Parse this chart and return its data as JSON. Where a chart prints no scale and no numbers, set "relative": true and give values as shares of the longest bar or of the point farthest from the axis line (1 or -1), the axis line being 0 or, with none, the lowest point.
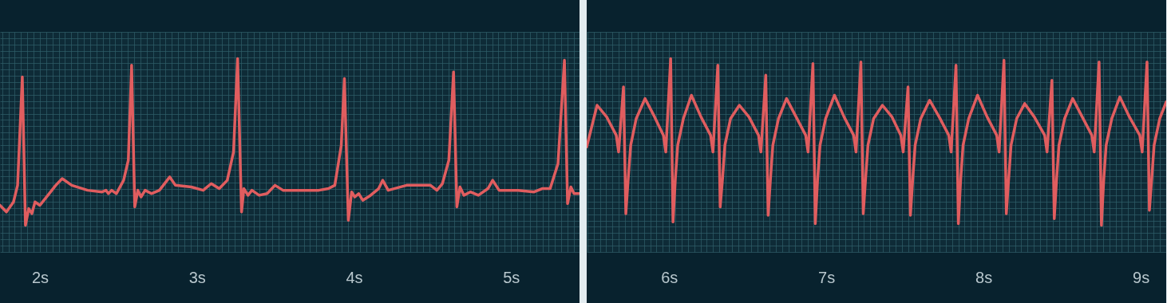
{
  "chart_data": [
    {
      "type": "line",
      "relative": true,
      "grid": true,
      "tick_labels": "x",
      "xlim": [
        1.746,
        5.436
      ],
      "xticks": [
        {
          "value": 2,
          "label": "2s"
        },
        {
          "value": 3,
          "label": "3s"
        },
        {
          "value": 4,
          "label": "4s"
        },
        {
          "value": 5,
          "label": "5s"
        }
      ],
      "x": [
        1.746,
        1.787,
        1.832,
        1.858,
        1.888,
        1.908,
        1.929,
        1.949,
        1.969,
        2.0,
        2.051,
        2.101,
        2.142,
        2.203,
        2.304,
        2.396,
        2.421,
        2.436,
        2.457,
        2.487,
        2.533,
        2.563,
        2.584,
        2.604,
        2.624,
        2.644,
        2.67,
        2.71,
        2.761,
        2.827,
        2.863,
        2.964,
        3.04,
        3.091,
        3.142,
        3.193,
        3.233,
        3.259,
        3.284,
        3.299,
        3.325,
        3.35,
        3.396,
        3.447,
        3.497,
        3.548,
        3.675,
        3.776,
        3.837,
        3.878,
        3.919,
        3.939,
        3.964,
        3.985,
        4.005,
        4.03,
        4.056,
        4.106,
        4.157,
        4.183,
        4.218,
        4.335,
        4.487,
        4.528,
        4.563,
        4.604,
        4.634,
        4.655,
        4.675,
        4.7,
        4.741,
        4.792,
        4.853,
        4.883,
        4.924,
        5.045,
        5.147,
        5.198,
        5.249,
        5.299,
        5.34,
        5.36,
        5.381,
        5.401,
        5.436
      ],
      "series": [
        {
          "color": "#e05d5f",
          "values": [
            0.12,
            0.08,
            0.14,
            0.24,
            0.89,
            0.0,
            0.1,
            0.07,
            0.14,
            0.12,
            0.18,
            0.24,
            0.28,
            0.24,
            0.21,
            0.2,
            0.21,
            0.19,
            0.21,
            0.19,
            0.27,
            0.39,
            0.96,
            0.11,
            0.21,
            0.17,
            0.21,
            0.19,
            0.21,
            0.29,
            0.24,
            0.23,
            0.21,
            0.25,
            0.22,
            0.27,
            0.44,
            1.0,
            0.08,
            0.22,
            0.18,
            0.21,
            0.18,
            0.19,
            0.24,
            0.21,
            0.21,
            0.21,
            0.22,
            0.24,
            0.48,
            0.88,
            0.03,
            0.2,
            0.17,
            0.19,
            0.15,
            0.18,
            0.22,
            0.27,
            0.21,
            0.24,
            0.24,
            0.21,
            0.25,
            0.39,
            0.92,
            0.11,
            0.23,
            0.18,
            0.2,
            0.18,
            0.22,
            0.27,
            0.21,
            0.21,
            0.2,
            0.22,
            0.22,
            0.37,
            0.99,
            0.13,
            0.23,
            0.19,
            0.19
          ]
        }
      ]
    },
    {
      "type": "line",
      "relative": true,
      "grid": true,
      "tick_labels": "x",
      "xlim": [
        5.476,
        9.162
      ],
      "xticks": [
        {
          "value": 6,
          "label": "6s"
        },
        {
          "value": 7,
          "label": "7s"
        },
        {
          "value": 8,
          "label": "8s"
        },
        {
          "value": 9,
          "label": "9s"
        }
      ],
      "x": [
        5.476,
        5.542,
        5.603,
        5.664,
        5.679,
        5.71,
        5.725,
        5.74,
        5.756,
        5.791,
        5.847,
        5.908,
        5.964,
        5.979,
        6.01,
        6.025,
        6.04,
        6.055,
        6.091,
        6.142,
        6.203,
        6.264,
        6.279,
        6.31,
        6.325,
        6.34,
        6.355,
        6.391,
        6.447,
        6.508,
        6.569,
        6.584,
        6.615,
        6.63,
        6.645,
        6.66,
        6.696,
        6.747,
        6.808,
        6.869,
        6.884,
        6.915,
        6.93,
        6.945,
        6.96,
        6.996,
        7.052,
        7.113,
        7.174,
        7.189,
        7.22,
        7.235,
        7.25,
        7.265,
        7.301,
        7.357,
        7.418,
        7.474,
        7.489,
        7.52,
        7.535,
        7.55,
        7.565,
        7.601,
        7.657,
        7.718,
        7.779,
        7.794,
        7.825,
        7.84,
        7.855,
        7.87,
        7.906,
        7.962,
        8.023,
        8.084,
        8.099,
        8.13,
        8.145,
        8.16,
        8.175,
        8.211,
        8.262,
        8.323,
        8.389,
        8.404,
        8.435,
        8.45,
        8.465,
        8.48,
        8.516,
        8.567,
        8.628,
        8.689,
        8.704,
        8.735,
        8.75,
        8.765,
        8.78,
        8.816,
        8.867,
        8.928,
        8.994,
        9.009,
        9.04,
        9.055,
        9.07,
        9.085,
        9.121,
        9.162
      ],
      "series": [
        {
          "color": "#e05d5f",
          "values": [
            0.47,
            0.72,
            0.65,
            0.54,
            0.44,
            0.83,
            0.07,
            0.28,
            0.48,
            0.64,
            0.76,
            0.65,
            0.54,
            0.44,
            1.0,
            0.02,
            0.28,
            0.48,
            0.64,
            0.78,
            0.65,
            0.54,
            0.44,
            0.96,
            0.11,
            0.28,
            0.48,
            0.64,
            0.72,
            0.65,
            0.54,
            0.44,
            0.9,
            0.06,
            0.28,
            0.48,
            0.64,
            0.76,
            0.65,
            0.54,
            0.44,
            0.97,
            0.01,
            0.28,
            0.48,
            0.64,
            0.78,
            0.65,
            0.54,
            0.44,
            0.98,
            0.07,
            0.28,
            0.48,
            0.64,
            0.72,
            0.65,
            0.54,
            0.44,
            0.83,
            0.06,
            0.28,
            0.48,
            0.64,
            0.75,
            0.65,
            0.54,
            0.44,
            0.96,
            0.01,
            0.28,
            0.48,
            0.64,
            0.78,
            0.65,
            0.54,
            0.44,
            0.99,
            0.07,
            0.28,
            0.48,
            0.64,
            0.73,
            0.65,
            0.54,
            0.44,
            0.87,
            0.04,
            0.28,
            0.48,
            0.64,
            0.76,
            0.65,
            0.54,
            0.44,
            0.98,
            0.0,
            0.28,
            0.48,
            0.64,
            0.77,
            0.65,
            0.54,
            0.44,
            0.98,
            0.09,
            0.28,
            0.48,
            0.64,
            0.74
          ]
        }
      ]
    }
  ]
}
